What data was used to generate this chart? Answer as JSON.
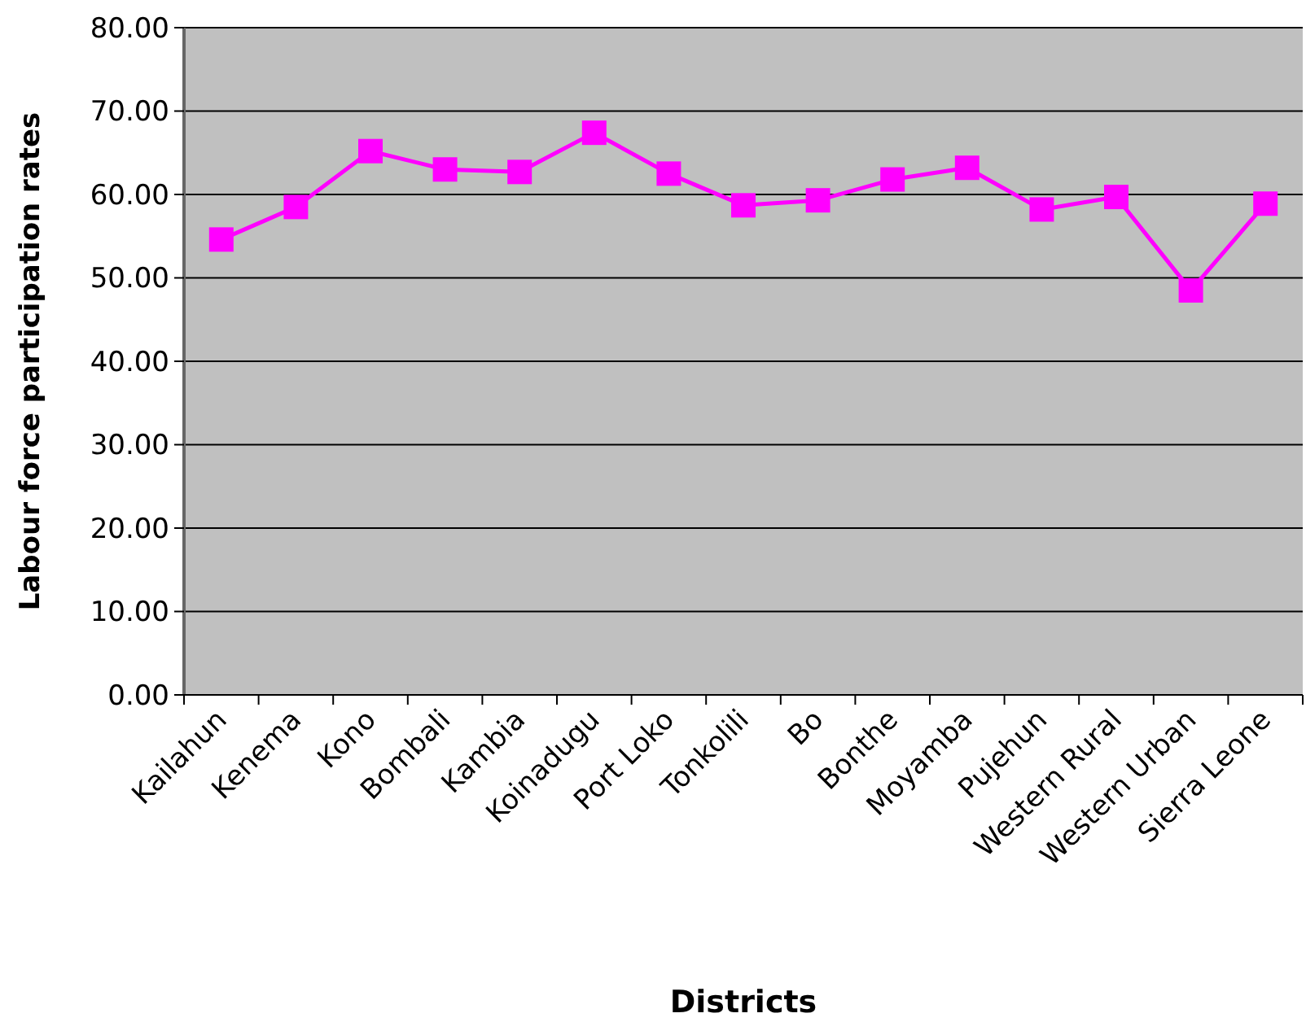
{
  "chart_data": {
    "type": "line",
    "xlabel": "Districts",
    "ylabel": "Labour force participation rates",
    "categories": [
      "Kailahun",
      "Kenema",
      "Kono",
      "Bombali",
      "Kambia",
      "Koinadugu",
      "Port Loko",
      "Tonkolili",
      "Bo",
      "Bonthe",
      "Moyamba",
      "Pujehun",
      "Western Rural",
      "Western Urban",
      "Sierra Leone"
    ],
    "series": [
      {
        "color": "#ff00ff",
        "values": [
          54.6,
          58.5,
          65.2,
          63.0,
          62.7,
          67.4,
          62.5,
          58.7,
          59.3,
          61.8,
          63.2,
          58.2,
          59.7,
          48.5,
          58.9
        ]
      }
    ],
    "ylim": [
      0,
      80
    ],
    "yticks": [
      {
        "value": 0,
        "label": "0.00"
      },
      {
        "value": 10,
        "label": "10.00"
      },
      {
        "value": 20,
        "label": "20.00"
      },
      {
        "value": 30,
        "label": "30.00"
      },
      {
        "value": 40,
        "label": "40.00"
      },
      {
        "value": 50,
        "label": "50.00"
      },
      {
        "value": 60,
        "label": "60.00"
      },
      {
        "value": 70,
        "label": "70.00"
      },
      {
        "value": 80,
        "label": "80.00"
      }
    ],
    "grid": "y",
    "marker": "square",
    "line_style": "solid"
  }
}
